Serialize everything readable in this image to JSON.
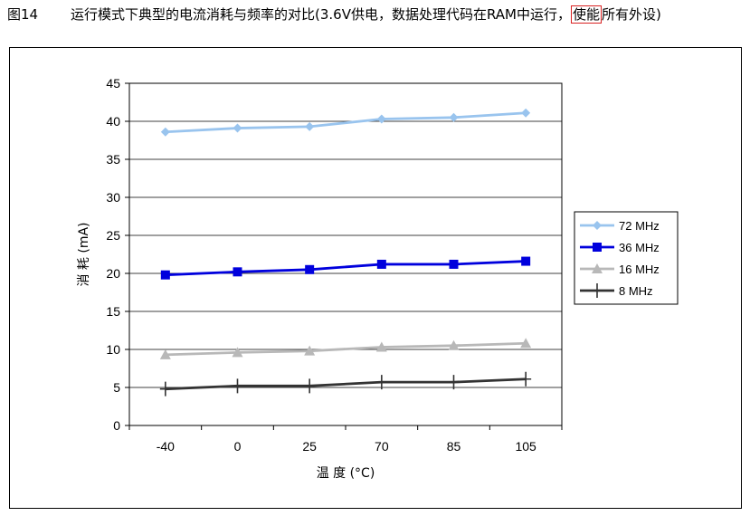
{
  "caption": {
    "figure_number": "图14",
    "title_before": "运行模式下典型的电流消耗与频率的对比(3.6V供电，数据处理代码在RAM中运行，",
    "title_highlight": "使能",
    "title_after": "所有外设)"
  },
  "chart_data": {
    "type": "line",
    "categories": [
      "-40",
      "0",
      "25",
      "70",
      "85",
      "105"
    ],
    "xlabel": "温 度 (°C)",
    "ylabel": "消 耗 (mA)",
    "ylim": [
      0,
      45
    ],
    "yticks": [
      0,
      5,
      10,
      15,
      20,
      25,
      30,
      35,
      40,
      45
    ],
    "grid": true,
    "legend_position": "right",
    "series": [
      {
        "name": "72 MHz",
        "values": [
          38.6,
          39.1,
          39.3,
          40.3,
          40.5,
          41.1
        ],
        "color": "#99c4ee",
        "marker": "diamond"
      },
      {
        "name": "36 MHz",
        "values": [
          19.8,
          20.2,
          20.5,
          21.2,
          21.2,
          21.6
        ],
        "color": "#0000dd",
        "marker": "square"
      },
      {
        "name": "16 MHz",
        "values": [
          9.3,
          9.6,
          9.8,
          10.3,
          10.5,
          10.8
        ],
        "color": "#b8b8b8",
        "marker": "triangle"
      },
      {
        "name": "8 MHz",
        "values": [
          4.8,
          5.2,
          5.2,
          5.7,
          5.7,
          6.1
        ],
        "color": "#333333",
        "marker": "plus"
      }
    ]
  }
}
